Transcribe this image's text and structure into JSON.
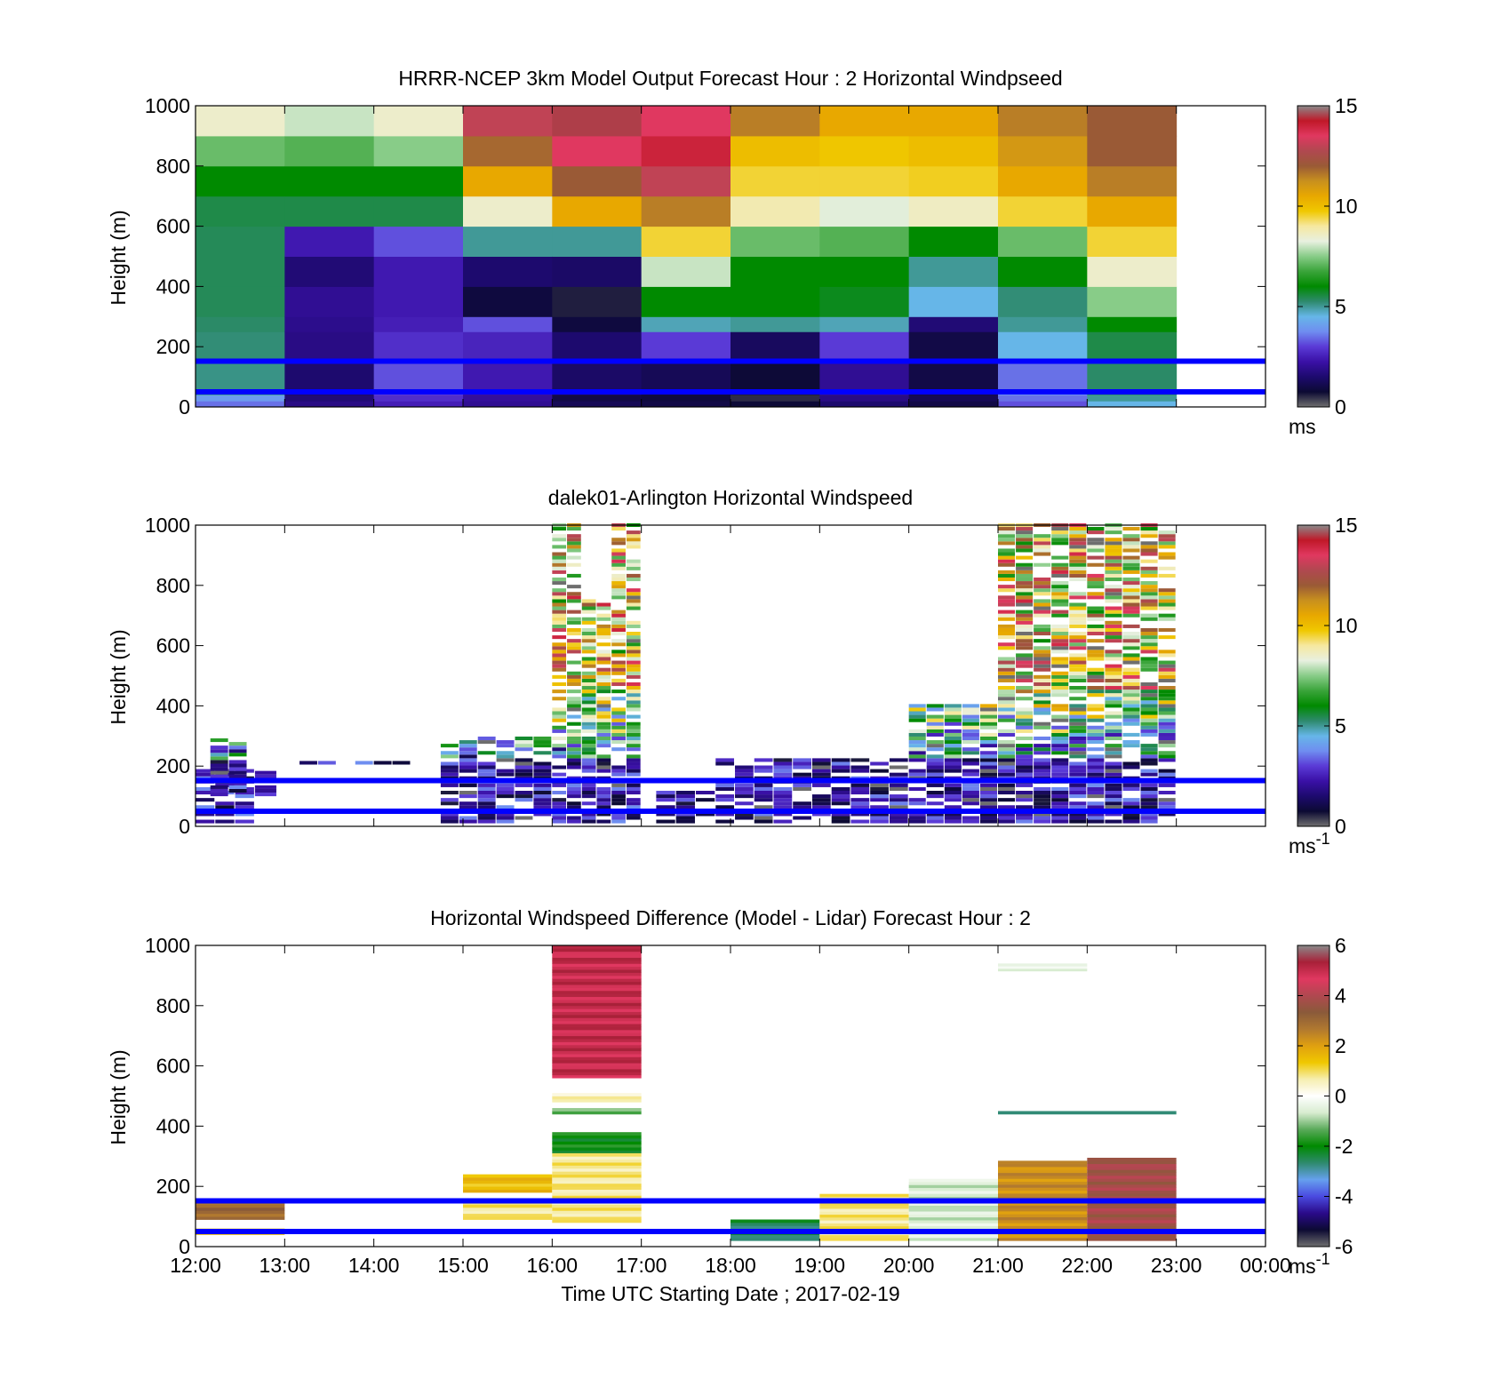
{
  "figure": {
    "xaxis_label": "Time UTC  Starting Date ; 2017-02-19",
    "x_ticks": [
      "12:00",
      "13:00",
      "14:00",
      "15:00",
      "16:00",
      "17:00",
      "18:00",
      "19:00",
      "20:00",
      "21:00",
      "22:00",
      "23:00",
      "00:00"
    ]
  },
  "colors": {
    "boundary_lines": "#0000ff",
    "windspeed_colormap": [
      "#6e6e6e",
      "#0c0a33",
      "#1d0a6e",
      "#3a10a6",
      "#5a3ad6",
      "#6f8df0",
      "#66b6e8",
      "#2e8a6e",
      "#008a00",
      "#3aa43a",
      "#88cc88",
      "#e8f0e0",
      "#f6e8a0",
      "#f0c800",
      "#e8a800",
      "#c8901e",
      "#9a5a36",
      "#b04850",
      "#e03860",
      "#c01828",
      "#8a8a8a"
    ],
    "difference_colormap": [
      "#6e6e6e",
      "#0c0a33",
      "#2a0a8a",
      "#4a4ae0",
      "#66a0ee",
      "#2e8a6e",
      "#008a00",
      "#5aaa5a",
      "#d8ecd0",
      "#ffffff",
      "#f6eeb0",
      "#f0c800",
      "#e0a010",
      "#b07830",
      "#8a5a3a",
      "#b04850",
      "#e03860",
      "#a82038",
      "#8a8a8a"
    ]
  },
  "chart_data": [
    {
      "type": "heatmap",
      "title": "HRRR-NCEP 3km Model Output   Forecast Hour : 2 Horizontal Windpseed",
      "ylabel": "Height (m)",
      "xlim": [
        "12:00",
        "00:00"
      ],
      "ylim": [
        0,
        1000
      ],
      "y_ticks": [
        "0",
        "200",
        "400",
        "600",
        "800",
        "1000"
      ],
      "colorbar": {
        "ticks": [
          "0",
          "5",
          "10",
          "15"
        ],
        "range": [
          0,
          15
        ],
        "unit": "ms"
      },
      "reference_lines_m": [
        50,
        152
      ],
      "hours": [
        "12:00",
        "13:00",
        "14:00",
        "15:00",
        "16:00",
        "17:00",
        "18:00",
        "19:00",
        "20:00",
        "21:00",
        "22:00"
      ],
      "level_bounds_m": [
        0,
        20,
        40,
        60,
        150,
        250,
        300,
        400,
        500,
        600,
        700,
        800,
        900,
        1000
      ],
      "values": [
        [
          3.5,
          1.8,
          2.5,
          2.0,
          1.2,
          1.0,
          0.8,
          1.5,
          1.0,
          3.2,
          4.5
        ],
        [
          4.0,
          1.6,
          2.8,
          2.1,
          1.0,
          0.9,
          0.5,
          1.8,
          1.2,
          3.5,
          5.0
        ],
        [
          5.0,
          1.5,
          3.0,
          2.2,
          1.3,
          1.0,
          0.6,
          2.0,
          1.1,
          3.8,
          5.2
        ],
        [
          5.1,
          1.5,
          3.2,
          2.4,
          1.4,
          1.2,
          0.8,
          2.0,
          1.0,
          3.5,
          5.3
        ],
        [
          5.2,
          1.8,
          2.8,
          2.6,
          1.5,
          3.0,
          1.3,
          3.0,
          1.0,
          4.5,
          5.5
        ],
        [
          5.3,
          1.9,
          2.5,
          3.2,
          0.9,
          4.8,
          5.0,
          4.8,
          1.6,
          5.0,
          6.0
        ],
        [
          5.4,
          2.0,
          2.4,
          0.9,
          0.6,
          6.0,
          6.0,
          5.8,
          4.5,
          5.2,
          7.5
        ],
        [
          5.4,
          1.6,
          2.4,
          1.5,
          1.4,
          8.0,
          6.0,
          6.0,
          5.0,
          6.0,
          8.5
        ],
        [
          5.4,
          2.4,
          3.2,
          5.0,
          5.0,
          9.5,
          7.2,
          7.0,
          6.0,
          7.2,
          9.5
        ],
        [
          5.5,
          5.5,
          5.5,
          8.5,
          10.5,
          11.5,
          8.8,
          8.2,
          8.6,
          9.5,
          10.5
        ],
        [
          6.0,
          6.0,
          6.0,
          10.5,
          12.0,
          13.0,
          9.5,
          9.5,
          9.6,
          10.5,
          11.5
        ],
        [
          7.2,
          7.0,
          7.5,
          11.8,
          13.5,
          14.0,
          10.0,
          9.8,
          10.0,
          11.0,
          12.0
        ],
        [
          8.5,
          8.0,
          8.5,
          13.0,
          14.5,
          13.5,
          11.5,
          10.5,
          10.5,
          11.5,
          12.0
        ]
      ]
    },
    {
      "type": "heatmap",
      "title": "dalek01-Arlington  Horizontal Windspeed",
      "ylabel": "Height (m)",
      "xlim": [
        "12:00",
        "00:00"
      ],
      "ylim": [
        0,
        1000
      ],
      "y_ticks": [
        "0",
        "200",
        "400",
        "600",
        "800",
        "1000"
      ],
      "colorbar": {
        "ticks": [
          "0",
          "5",
          "10",
          "15"
        ],
        "range": [
          0,
          15
        ],
        "unit": "ms",
        "unit_exponent": "-1"
      },
      "reference_lines_m": [
        50,
        152
      ],
      "observed_coverage_m": [
        {
          "x": [
            "12:00",
            "12:40"
          ],
          "y": [
            10,
            180
          ]
        },
        {
          "x": [
            "12:10",
            "12:35"
          ],
          "y": [
            100,
            290
          ]
        },
        {
          "x": [
            "12:40",
            "12:55"
          ],
          "y": [
            100,
            180
          ]
        },
        {
          "x": [
            "13:10",
            "14:25"
          ],
          "y": [
            205,
            215
          ]
        },
        {
          "x": [
            "14:45",
            "16:00"
          ],
          "y": [
            10,
            290
          ]
        },
        {
          "x": [
            "16:00",
            "16:20"
          ],
          "y": [
            10,
            1000
          ]
        },
        {
          "x": [
            "16:20",
            "16:40"
          ],
          "y": [
            10,
            750
          ]
        },
        {
          "x": [
            "16:40",
            "17:00"
          ],
          "y": [
            10,
            1000
          ]
        },
        {
          "x": [
            "17:10",
            "17:50"
          ],
          "y": [
            10,
            110
          ]
        },
        {
          "x": [
            "17:50",
            "20:00"
          ],
          "y": [
            10,
            220
          ]
        },
        {
          "x": [
            "20:00",
            "21:00"
          ],
          "y": [
            10,
            400
          ]
        },
        {
          "x": [
            "21:00",
            "23:00"
          ],
          "y": [
            10,
            1000
          ]
        }
      ]
    },
    {
      "type": "heatmap",
      "title": "Horizontal Windspeed Difference (Model - Lidar) Forecast Hour : 2",
      "ylabel": "Height (m)",
      "xlim": [
        "12:00",
        "00:00"
      ],
      "ylim": [
        0,
        1000
      ],
      "y_ticks": [
        "0",
        "200",
        "400",
        "600",
        "800",
        "1000"
      ],
      "colorbar": {
        "ticks": [
          "-6",
          "-4",
          "-2",
          "0",
          "2",
          "4",
          "6"
        ],
        "range": [
          -6,
          6
        ],
        "unit": "ms",
        "unit_exponent": "-1"
      },
      "reference_lines_m": [
        50,
        152
      ],
      "blocks": [
        {
          "x": [
            "12:00",
            "13:00"
          ],
          "y": [
            90,
            150
          ],
          "value": 3.0
        },
        {
          "x": [
            "12:00",
            "13:00"
          ],
          "y": [
            40,
            60
          ],
          "value": 1.2
        },
        {
          "x": [
            "15:00",
            "16:00"
          ],
          "y": [
            180,
            240
          ],
          "value": 1.5
        },
        {
          "x": [
            "15:00",
            "16:00"
          ],
          "y": [
            90,
            150
          ],
          "value": 0.8
        },
        {
          "x": [
            "16:00",
            "17:00"
          ],
          "y": [
            560,
            1000
          ],
          "value": 5.0
        },
        {
          "x": [
            "16:00",
            "17:00"
          ],
          "y": [
            480,
            510
          ],
          "value": 0.5
        },
        {
          "x": [
            "16:00",
            "17:00"
          ],
          "y": [
            440,
            460
          ],
          "value": -1.2
        },
        {
          "x": [
            "16:00",
            "17:00"
          ],
          "y": [
            310,
            380
          ],
          "value": -2.0
        },
        {
          "x": [
            "16:00",
            "17:00"
          ],
          "y": [
            80,
            310
          ],
          "value": 0.8
        },
        {
          "x": [
            "18:00",
            "19:00"
          ],
          "y": [
            20,
            90
          ],
          "value": -2.5
        },
        {
          "x": [
            "19:00",
            "20:00"
          ],
          "y": [
            20,
            175
          ],
          "value": 0.8
        },
        {
          "x": [
            "20:00",
            "21:00"
          ],
          "y": [
            20,
            225
          ],
          "value": -0.6
        },
        {
          "x": [
            "21:00",
            "22:00"
          ],
          "y": [
            20,
            285
          ],
          "value": 2.3
        },
        {
          "x": [
            "21:00",
            "22:00"
          ],
          "y": [
            915,
            940
          ],
          "value": -0.5
        },
        {
          "x": [
            "21:00",
            "23:00"
          ],
          "y": [
            440,
            450
          ],
          "value": -2.5
        },
        {
          "x": [
            "22:00",
            "23:00"
          ],
          "y": [
            20,
            295
          ],
          "value": 3.8
        }
      ]
    }
  ]
}
